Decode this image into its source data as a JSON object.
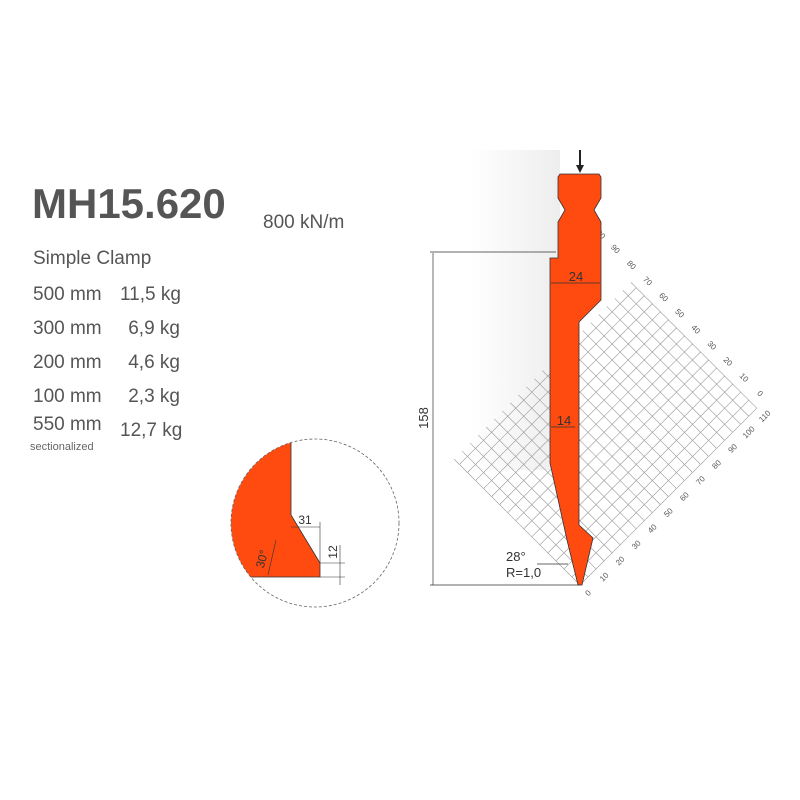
{
  "title": "MH15.620",
  "force": "800 kN/m",
  "clamp": "Simple Clamp",
  "rows": [
    {
      "length": "500 mm",
      "weight": "11,5 kg"
    },
    {
      "length": "300 mm",
      "weight": "6,9 kg"
    },
    {
      "length": "200 mm",
      "weight": "4,6 kg"
    },
    {
      "length": "100 mm",
      "weight": "2,3 kg"
    },
    {
      "length": "550 mm",
      "weight": "12,7 kg",
      "note": "sectionalized"
    }
  ],
  "dimensions": {
    "height": "158",
    "width_top": "24",
    "width_mid": "14",
    "angle": "28°",
    "radius": "R=1,0"
  },
  "detail": {
    "width": "31",
    "height": "12",
    "angle": "30°"
  },
  "grid": {
    "axis_x_labels": [
      "0",
      "10",
      "20",
      "30",
      "40",
      "50",
      "60",
      "70",
      "80",
      "90",
      "100",
      "110"
    ],
    "axis_y_labels": [
      "0",
      "10",
      "20",
      "30",
      "40",
      "50",
      "60",
      "70",
      "80",
      "90",
      "100"
    ]
  },
  "colors": {
    "tool": "#ff4a10",
    "text": "#555555",
    "grid": "#999999"
  }
}
